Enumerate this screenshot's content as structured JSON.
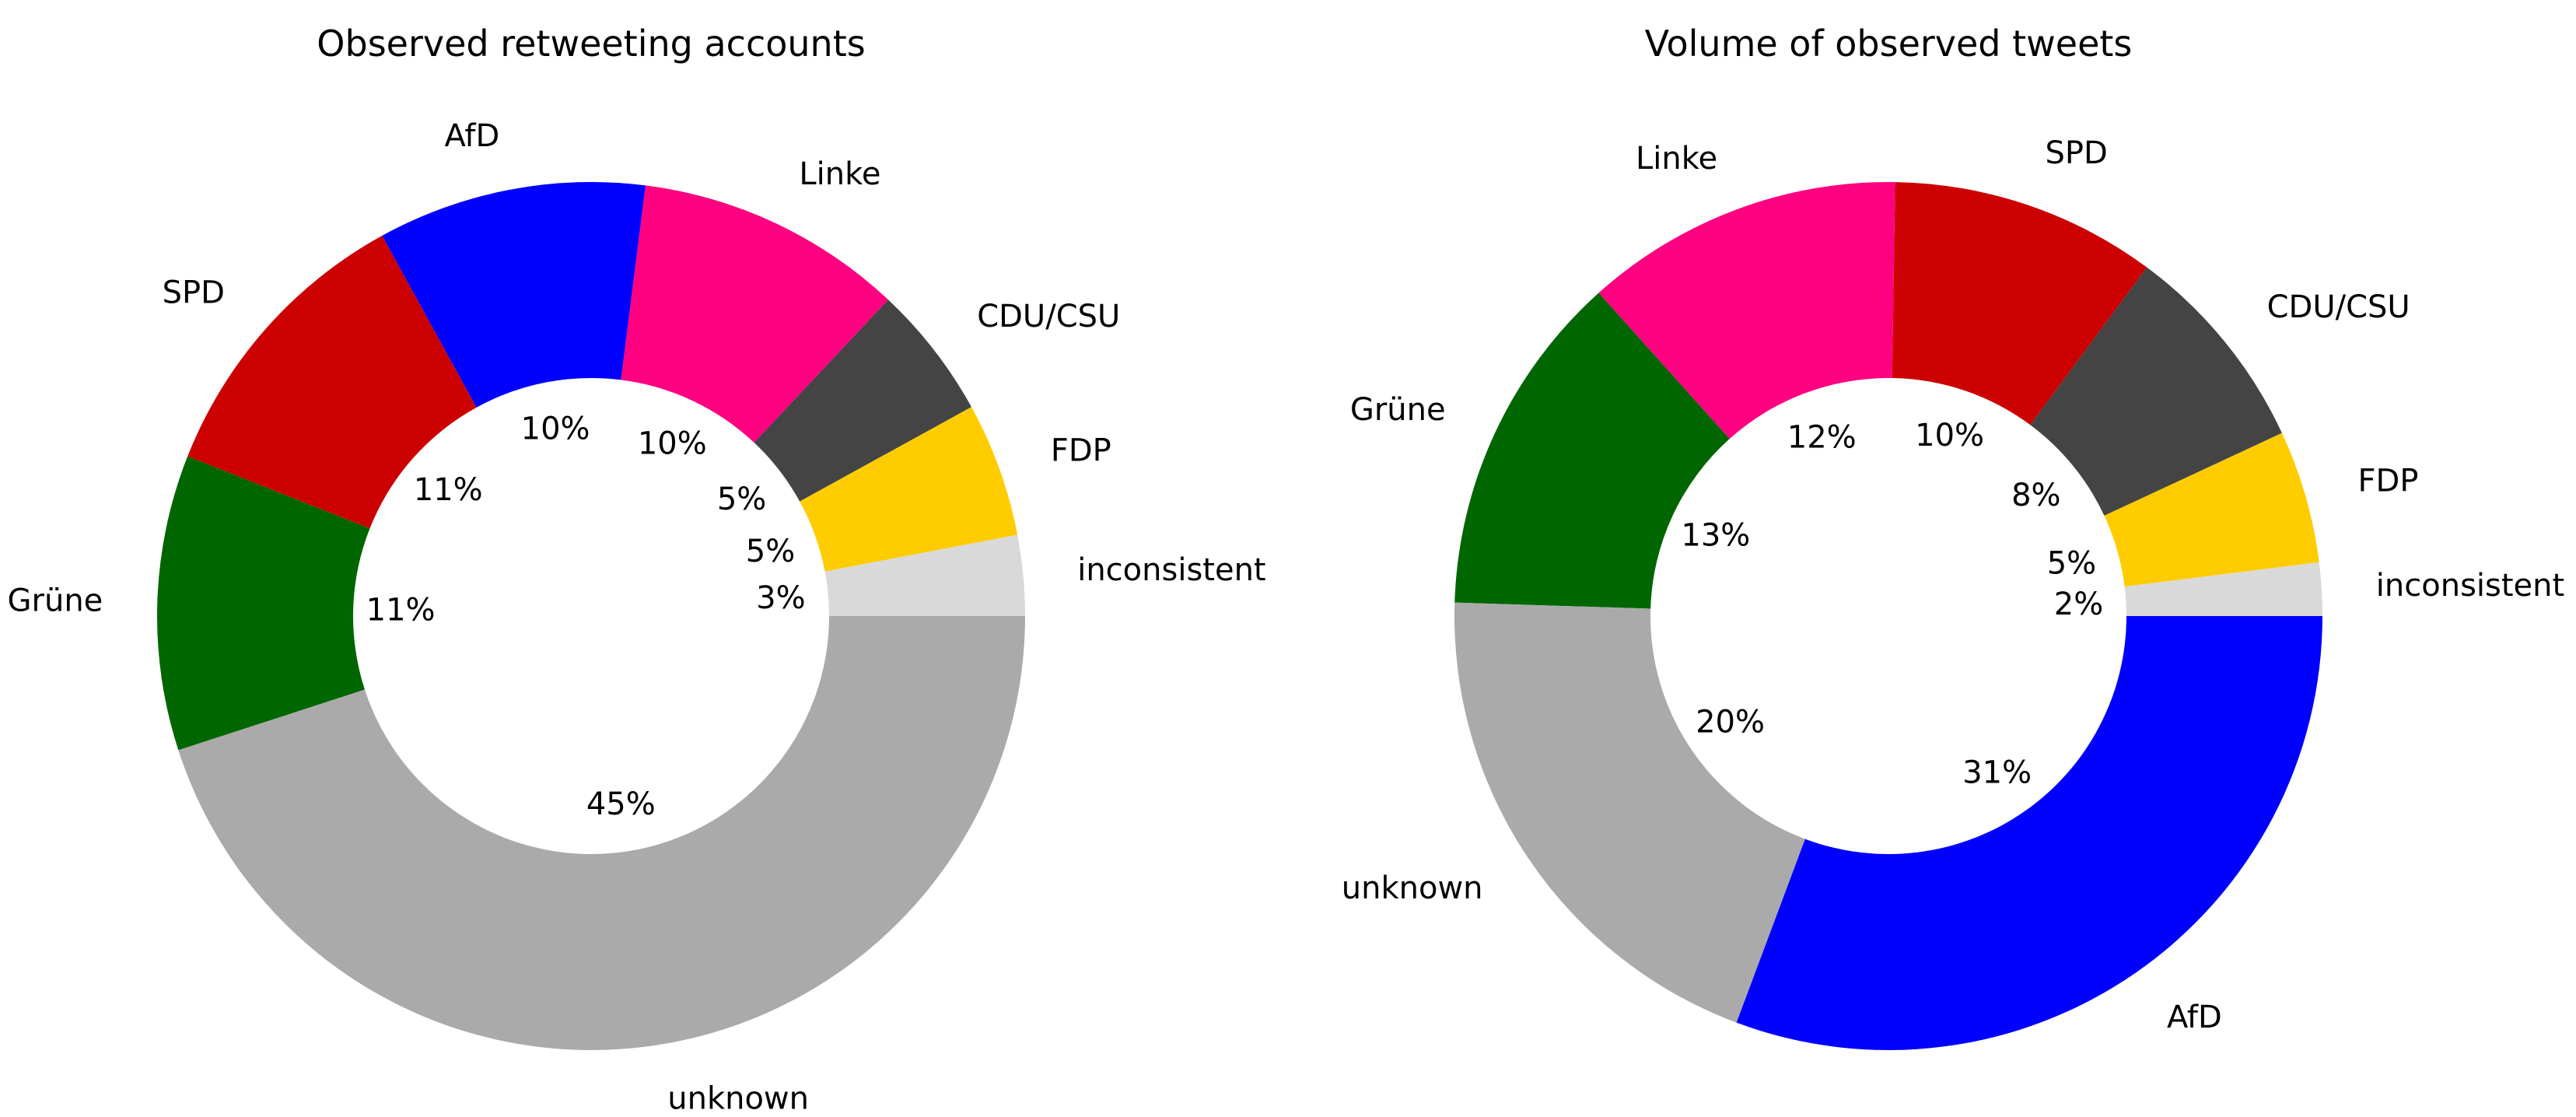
{
  "chart_data": [
    {
      "type": "pie",
      "title": "Observed retweeting accounts",
      "start_angle_deg": 0,
      "direction": "counterclockwise",
      "donut": true,
      "slices": [
        {
          "label": "inconsistent",
          "value": 3,
          "pct_label": "3%",
          "color": "#d9d9d9"
        },
        {
          "label": "FDP",
          "value": 5,
          "pct_label": "5%",
          "color": "#ffcc00"
        },
        {
          "label": "CDU/CSU",
          "value": 5,
          "pct_label": "5%",
          "color": "#444444"
        },
        {
          "label": "Linke",
          "value": 10,
          "pct_label": "10%",
          "color": "#ff0080"
        },
        {
          "label": "AfD",
          "value": 10,
          "pct_label": "10%",
          "color": "#0000ff"
        },
        {
          "label": "SPD",
          "value": 11,
          "pct_label": "11%",
          "color": "#cc0000"
        },
        {
          "label": "Grüne",
          "value": 11,
          "pct_label": "11%",
          "color": "#006600"
        },
        {
          "label": "unknown",
          "value": 45,
          "pct_label": "45%",
          "color": "#aaaaaa"
        }
      ]
    },
    {
      "type": "pie",
      "title": "Volume of observed tweets",
      "start_angle_deg": 0,
      "direction": "counterclockwise",
      "donut": true,
      "slices": [
        {
          "label": "inconsistent",
          "value": 2,
          "pct_label": "2%",
          "color": "#d9d9d9"
        },
        {
          "label": "FDP",
          "value": 5,
          "pct_label": "5%",
          "color": "#ffcc00"
        },
        {
          "label": "CDU/CSU",
          "value": 8,
          "pct_label": "8%",
          "color": "#444444"
        },
        {
          "label": "SPD",
          "value": 10,
          "pct_label": "10%",
          "color": "#cc0000"
        },
        {
          "label": "Linke",
          "value": 12,
          "pct_label": "12%",
          "color": "#ff0080"
        },
        {
          "label": "Grüne",
          "value": 13,
          "pct_label": "13%",
          "color": "#006600"
        },
        {
          "label": "unknown",
          "value": 20,
          "pct_label": "20%",
          "color": "#aaaaaa"
        },
        {
          "label": "AfD",
          "value": 31,
          "pct_label": "31%",
          "color": "#0000ff"
        }
      ]
    }
  ]
}
